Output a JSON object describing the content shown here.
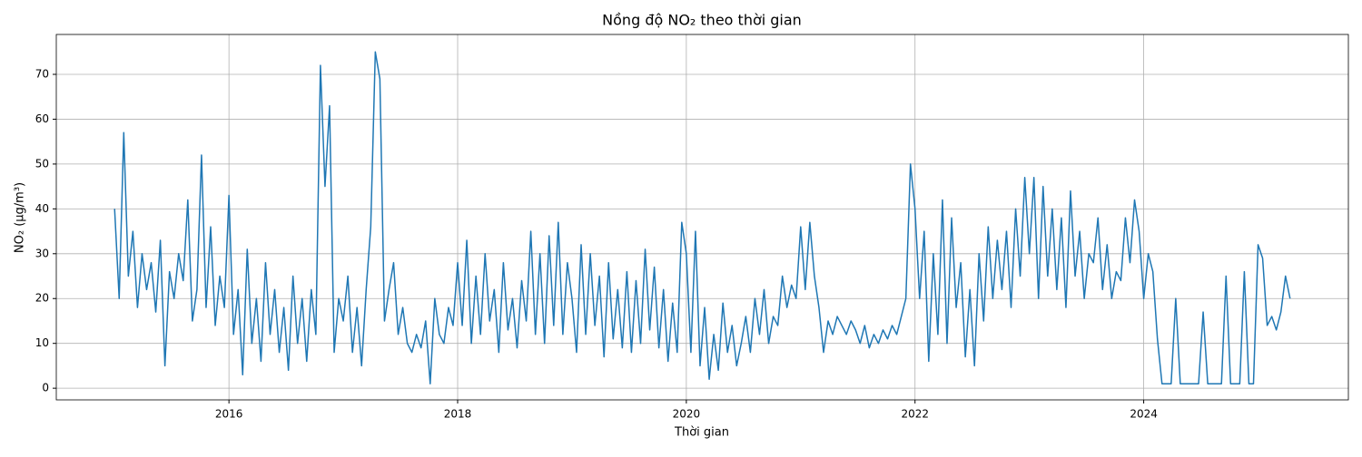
{
  "chart_data": {
    "type": "line",
    "title": "Nồng độ NO₂ theo thời gian",
    "xlabel": "Thời gian",
    "ylabel": "NO₂ (µg/m³)",
    "grid": true,
    "xlim": [
      2014.49,
      2025.79
    ],
    "ylim": [
      -2.6,
      78.9
    ],
    "xticks": [
      2016,
      2018,
      2020,
      2022,
      2024
    ],
    "yticks": [
      0,
      10,
      20,
      30,
      40,
      50,
      60,
      70
    ],
    "series": [
      {
        "name": "NO₂",
        "color": "#1f77b4",
        "x": [
          2015,
          2015.04,
          2015.08,
          2015.12,
          2015.16,
          2015.2,
          2015.24,
          2015.28,
          2015.32,
          2015.36,
          2015.4,
          2015.44,
          2015.48,
          2015.52,
          2015.56,
          2015.6,
          2015.64,
          2015.68,
          2015.72,
          2015.76,
          2015.8,
          2015.84,
          2015.88,
          2015.92,
          2015.96,
          2016,
          2016.04,
          2016.08,
          2016.12,
          2016.16,
          2016.2,
          2016.24,
          2016.28,
          2016.32,
          2016.36,
          2016.4,
          2016.44,
          2016.48,
          2016.52,
          2016.56,
          2016.6,
          2016.64,
          2016.68,
          2016.72,
          2016.76,
          2016.8,
          2016.84,
          2016.88,
          2016.92,
          2016.96,
          2017,
          2017.04,
          2017.08,
          2017.12,
          2017.16,
          2017.2,
          2017.24,
          2017.28,
          2017.32,
          2017.36,
          2017.4,
          2017.44,
          2017.48,
          2017.52,
          2017.56,
          2017.6,
          2017.64,
          2017.68,
          2017.72,
          2017.76,
          2017.8,
          2017.84,
          2017.88,
          2017.92,
          2017.96,
          2018,
          2018.04,
          2018.08,
          2018.12,
          2018.16,
          2018.2,
          2018.24,
          2018.28,
          2018.32,
          2018.36,
          2018.4,
          2018.44,
          2018.48,
          2018.52,
          2018.56,
          2018.6,
          2018.64,
          2018.68,
          2018.72,
          2018.76,
          2018.8,
          2018.84,
          2018.88,
          2018.92,
          2018.96,
          2019,
          2019.04,
          2019.08,
          2019.12,
          2019.16,
          2019.2,
          2019.24,
          2019.28,
          2019.32,
          2019.36,
          2019.4,
          2019.44,
          2019.48,
          2019.52,
          2019.56,
          2019.6,
          2019.64,
          2019.68,
          2019.72,
          2019.76,
          2019.8,
          2019.84,
          2019.88,
          2019.92,
          2019.96,
          2020,
          2020.04,
          2020.08,
          2020.12,
          2020.16,
          2020.2,
          2020.24,
          2020.28,
          2020.32,
          2020.36,
          2020.4,
          2020.44,
          2020.48,
          2020.52,
          2020.56,
          2020.6,
          2020.64,
          2020.68,
          2020.72,
          2020.76,
          2020.8,
          2020.84,
          2020.88,
          2020.92,
          2020.96,
          2021,
          2021.04,
          2021.08,
          2021.12,
          2021.16,
          2021.2,
          2021.24,
          2021.28,
          2021.32,
          2021.36,
          2021.4,
          2021.44,
          2021.48,
          2021.52,
          2021.56,
          2021.6,
          2021.64,
          2021.68,
          2021.72,
          2021.76,
          2021.8,
          2021.84,
          2021.88,
          2021.92,
          2021.96,
          2022,
          2022.04,
          2022.08,
          2022.12,
          2022.16,
          2022.2,
          2022.24,
          2022.28,
          2022.32,
          2022.36,
          2022.4,
          2022.44,
          2022.48,
          2022.52,
          2022.56,
          2022.6,
          2022.64,
          2022.68,
          2022.72,
          2022.76,
          2022.8,
          2022.84,
          2022.88,
          2022.92,
          2022.96,
          2023,
          2023.04,
          2023.08,
          2023.12,
          2023.16,
          2023.2,
          2023.24,
          2023.28,
          2023.32,
          2023.36,
          2023.4,
          2023.44,
          2023.48,
          2023.52,
          2023.56,
          2023.6,
          2023.64,
          2023.68,
          2023.72,
          2023.76,
          2023.8,
          2023.84,
          2023.88,
          2023.92,
          2023.96,
          2024,
          2024.04,
          2024.08,
          2024.12,
          2024.16,
          2024.2,
          2024.24,
          2024.28,
          2024.32,
          2024.36,
          2024.4,
          2024.44,
          2024.48,
          2024.52,
          2024.56,
          2024.6,
          2024.64,
          2024.68,
          2024.72,
          2024.76,
          2024.8,
          2024.84,
          2024.88,
          2024.92,
          2024.96,
          2025,
          2025.04,
          2025.08,
          2025.12,
          2025.16,
          2025.2,
          2025.24,
          2025.28
        ],
        "values": [
          40,
          20,
          57,
          25,
          35,
          18,
          30,
          22,
          28,
          17,
          33,
          5,
          26,
          20,
          30,
          24,
          42,
          15,
          22,
          52,
          18,
          36,
          14,
          25,
          18,
          43,
          12,
          22,
          3,
          31,
          10,
          20,
          6,
          28,
          12,
          22,
          8,
          18,
          4,
          25,
          10,
          20,
          6,
          22,
          12,
          72,
          45,
          63,
          8,
          20,
          15,
          25,
          8,
          18,
          5,
          22,
          36,
          75,
          69,
          15,
          22,
          28,
          12,
          18,
          10,
          8,
          12,
          9,
          15,
          1,
          20,
          12,
          10,
          18,
          14,
          28,
          14,
          33,
          10,
          25,
          12,
          30,
          15,
          22,
          8,
          28,
          13,
          20,
          9,
          24,
          15,
          35,
          12,
          30,
          10,
          34,
          14,
          37,
          12,
          28,
          20,
          8,
          32,
          12,
          30,
          14,
          25,
          7,
          28,
          11,
          22,
          9,
          26,
          8,
          24,
          10,
          31,
          13,
          27,
          9,
          22,
          6,
          19,
          8,
          37,
          30,
          8,
          35,
          5,
          18,
          2,
          12,
          4,
          19,
          8,
          14,
          5,
          10,
          16,
          8,
          20,
          12,
          22,
          10,
          16,
          14,
          25,
          18,
          23,
          20,
          36,
          22,
          37,
          25,
          18,
          8,
          15,
          12,
          16,
          14,
          12,
          15,
          13,
          10,
          14,
          9,
          12,
          10,
          13,
          11,
          14,
          12,
          16,
          20,
          50,
          40,
          20,
          35,
          6,
          30,
          12,
          42,
          10,
          38,
          18,
          28,
          7,
          22,
          5,
          30,
          15,
          36,
          20,
          33,
          22,
          35,
          18,
          40,
          25,
          47,
          30,
          47,
          20,
          45,
          25,
          40,
          22,
          38,
          18,
          44,
          25,
          35,
          20,
          30,
          28,
          38,
          22,
          32,
          20,
          26,
          24,
          38,
          28,
          42,
          35,
          20,
          30,
          26,
          11,
          1,
          1,
          1,
          20,
          1,
          1,
          1,
          1,
          1,
          17,
          1,
          1,
          1,
          1,
          25,
          1,
          1,
          1,
          26,
          1,
          1,
          32,
          29,
          14,
          16,
          13,
          17,
          25,
          20
        ]
      }
    ]
  }
}
